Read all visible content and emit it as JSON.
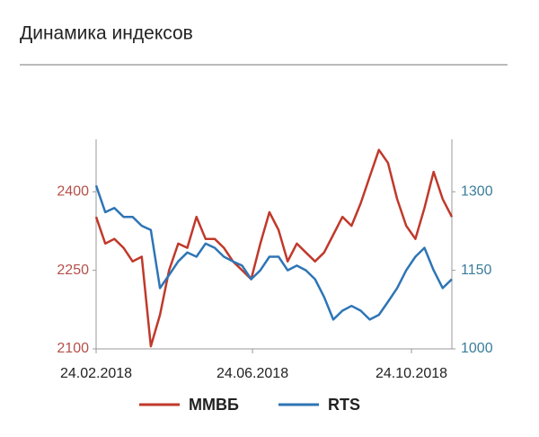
{
  "chart_data": {
    "type": "line",
    "title": "Динамика индексов",
    "x": [
      "24.02.2018",
      "03.03.2018",
      "10.03.2018",
      "17.03.2018",
      "24.03.2018",
      "31.03.2018",
      "07.04.2018",
      "14.04.2018",
      "21.04.2018",
      "28.04.2018",
      "05.05.2018",
      "12.05.2018",
      "19.05.2018",
      "26.05.2018",
      "02.06.2018",
      "09.06.2018",
      "16.06.2018",
      "23.06.2018",
      "30.06.2018",
      "07.07.2018",
      "14.07.2018",
      "21.07.2018",
      "28.07.2018",
      "04.08.2018",
      "11.08.2018",
      "18.08.2018",
      "25.08.2018",
      "01.09.2018",
      "08.09.2018",
      "15.09.2018",
      "22.09.2018",
      "29.09.2018",
      "06.10.2018",
      "13.10.2018",
      "20.10.2018",
      "27.10.2018",
      "03.11.2018",
      "10.11.2018",
      "17.11.2018",
      "24.11.2018"
    ],
    "series": [
      {
        "name": "ММВБ",
        "color": "#c0392b",
        "axis": "y",
        "values": [
          2352,
          2301,
          2310,
          2293,
          2267,
          2276,
          2105,
          2165,
          2250,
          2301,
          2293,
          2352,
          2310,
          2310,
          2293,
          2267,
          2250,
          2233,
          2301,
          2361,
          2327,
          2267,
          2301,
          2284,
          2267,
          2284,
          2318,
          2352,
          2335,
          2378,
          2429,
          2480,
          2455,
          2386,
          2335,
          2310,
          2369,
          2438,
          2386,
          2352
        ]
      },
      {
        "name": "RTS",
        "color": "#2e75b6",
        "axis": "y2",
        "values": [
          1312,
          1261,
          1269,
          1252,
          1252,
          1235,
          1227,
          1116,
          1141,
          1167,
          1184,
          1176,
          1201,
          1193,
          1176,
          1167,
          1159,
          1133,
          1150,
          1176,
          1176,
          1150,
          1159,
          1150,
          1133,
          1099,
          1056,
          1073,
          1082,
          1073,
          1056,
          1065,
          1090,
          1116,
          1150,
          1176,
          1193,
          1150,
          1116,
          1133
        ]
      }
    ],
    "xlim": [
      "24.02.2018",
      "24.11.2018"
    ],
    "xticks": [
      "24.02.2018",
      "24.06.2018",
      "24.10.2018"
    ],
    "ylim": [
      2100,
      2500
    ],
    "yticks": [
      2100,
      2250,
      2400
    ],
    "y2lim": [
      1000,
      1400
    ],
    "y2ticks": [
      1000,
      1150,
      1300
    ],
    "ytick_color": "#b5504a",
    "y2tick_color": "#3a7d9c"
  }
}
